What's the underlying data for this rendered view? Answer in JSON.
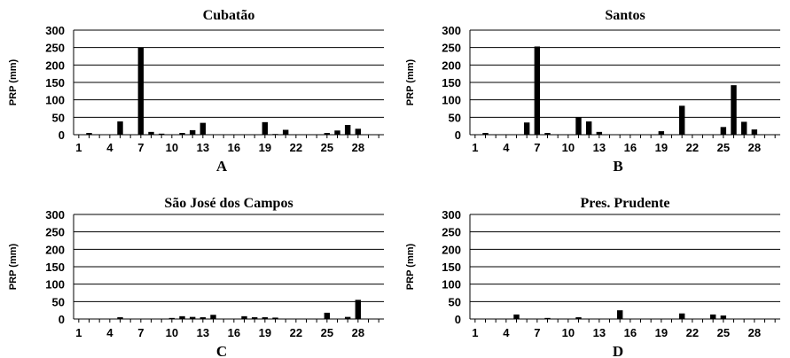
{
  "chart_data": [
    {
      "type": "bar",
      "title": "Cubatão",
      "panel": "A",
      "ylabel": "PRP (mm)",
      "ylim": [
        0,
        300
      ],
      "yticks": [
        0,
        50,
        100,
        150,
        200,
        250,
        300
      ],
      "x": [
        1,
        2,
        3,
        4,
        5,
        6,
        7,
        8,
        9,
        10,
        11,
        12,
        13,
        14,
        15,
        16,
        17,
        18,
        19,
        20,
        21,
        22,
        23,
        24,
        25,
        26,
        27,
        28,
        29,
        30
      ],
      "xtick_labels": [
        "1",
        "4",
        "7",
        "10",
        "13",
        "16",
        "19",
        "22",
        "25",
        "28"
      ],
      "values": [
        0,
        5,
        0,
        0,
        38,
        0,
        250,
        8,
        3,
        0,
        5,
        13,
        34,
        0,
        0,
        0,
        0,
        0,
        36,
        2,
        14,
        0,
        0,
        0,
        5,
        12,
        28,
        17,
        0,
        0
      ],
      "grid": "horizontal",
      "color": "#000000"
    },
    {
      "type": "bar",
      "title": "Santos",
      "panel": "B",
      "ylabel": "PRP (mm)",
      "ylim": [
        0,
        300
      ],
      "yticks": [
        0,
        50,
        100,
        150,
        200,
        250,
        300
      ],
      "x": [
        1,
        2,
        3,
        4,
        5,
        6,
        7,
        8,
        9,
        10,
        11,
        12,
        13,
        14,
        15,
        16,
        17,
        18,
        19,
        20,
        21,
        22,
        23,
        24,
        25,
        26,
        27,
        28,
        29,
        30
      ],
      "xtick_labels": [
        "1",
        "4",
        "7",
        "10",
        "13",
        "16",
        "19",
        "22",
        "25",
        "28"
      ],
      "values": [
        0,
        5,
        0,
        0,
        0,
        35,
        253,
        5,
        0,
        0,
        50,
        38,
        8,
        0,
        0,
        0,
        0,
        0,
        10,
        0,
        83,
        0,
        0,
        0,
        22,
        142,
        37,
        15,
        0,
        0
      ],
      "grid": "horizontal",
      "color": "#000000"
    },
    {
      "type": "bar",
      "title": "São José dos Campos",
      "panel": "C",
      "ylabel": "PRP (mm)",
      "ylim": [
        0,
        300
      ],
      "yticks": [
        0,
        50,
        100,
        150,
        200,
        250,
        300
      ],
      "x": [
        1,
        2,
        3,
        4,
        5,
        6,
        7,
        8,
        9,
        10,
        11,
        12,
        13,
        14,
        15,
        16,
        17,
        18,
        19,
        20,
        21,
        22,
        23,
        24,
        25,
        26,
        27,
        28,
        29,
        30
      ],
      "xtick_labels": [
        "1",
        "4",
        "7",
        "10",
        "13",
        "16",
        "19",
        "22",
        "25",
        "28"
      ],
      "values": [
        0,
        0,
        0,
        0,
        5,
        0,
        0,
        0,
        0,
        3,
        8,
        6,
        5,
        12,
        0,
        0,
        8,
        5,
        5,
        4,
        0,
        0,
        0,
        0,
        18,
        0,
        6,
        55,
        0,
        0
      ],
      "grid": "horizontal",
      "color": "#000000"
    },
    {
      "type": "bar",
      "title": "Pres. Prudente",
      "panel": "D",
      "ylabel": "PRP (mm)",
      "ylim": [
        0,
        300
      ],
      "yticks": [
        0,
        50,
        100,
        150,
        200,
        250,
        300
      ],
      "x": [
        1,
        2,
        3,
        4,
        5,
        6,
        7,
        8,
        9,
        10,
        11,
        12,
        13,
        14,
        15,
        16,
        17,
        18,
        19,
        20,
        21,
        22,
        23,
        24,
        25,
        26,
        27,
        28,
        29,
        30
      ],
      "xtick_labels": [
        "1",
        "4",
        "7",
        "10",
        "13",
        "16",
        "19",
        "22",
        "25",
        "28"
      ],
      "values": [
        0,
        0,
        0,
        0,
        13,
        0,
        0,
        3,
        0,
        0,
        5,
        0,
        0,
        0,
        25,
        0,
        0,
        0,
        0,
        0,
        16,
        0,
        0,
        13,
        10,
        0,
        0,
        0,
        0,
        0
      ],
      "grid": "horizontal",
      "color": "#000000"
    }
  ]
}
